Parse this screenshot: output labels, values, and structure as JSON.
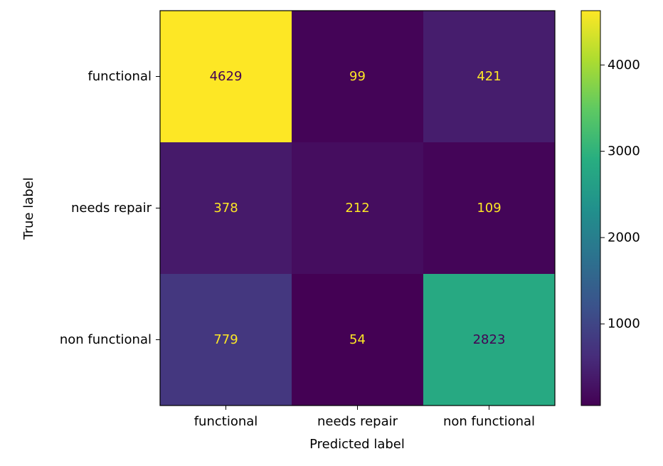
{
  "chart_data": {
    "type": "heatmap",
    "xlabel": "Predicted label",
    "ylabel": "True label",
    "x_categories": [
      "functional",
      "needs repair",
      "non functional"
    ],
    "y_categories": [
      "functional",
      "needs repair",
      "non functional"
    ],
    "matrix": [
      [
        4629,
        99,
        421
      ],
      [
        378,
        212,
        109
      ],
      [
        779,
        54,
        2823
      ]
    ],
    "colormap": "viridis",
    "color_range": [
      54,
      4629
    ],
    "colorbar_ticks": [
      1000,
      2000,
      3000,
      4000
    ],
    "colorbar_tick_labels": [
      "1000",
      "2000",
      "3000",
      "4000"
    ],
    "text_color_on_dark": "#fde725",
    "text_color_on_light": "#440154",
    "grid": false
  }
}
